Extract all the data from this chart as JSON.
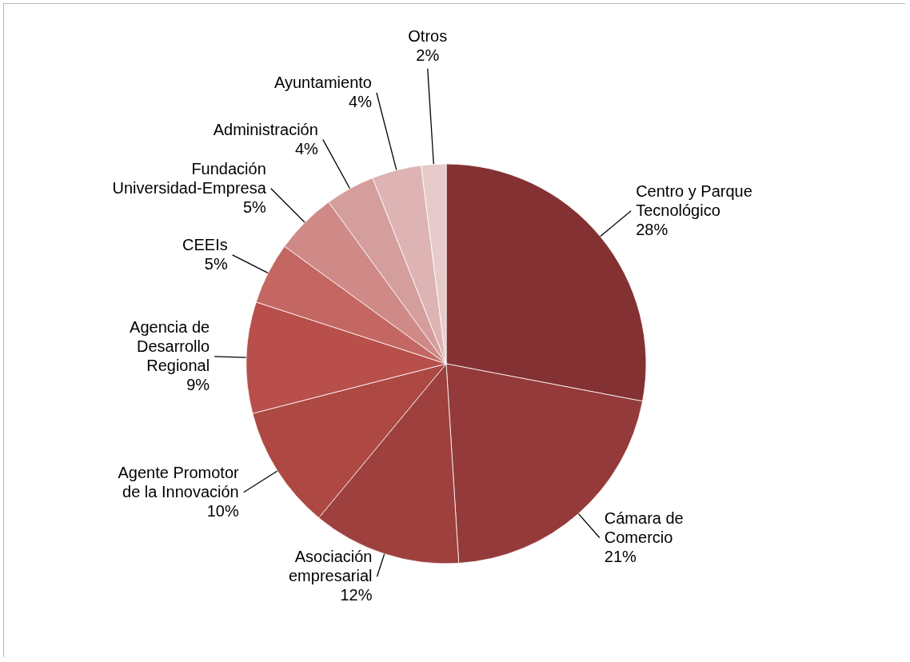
{
  "chart_data": {
    "type": "pie",
    "categories": [
      "Centro y Parque Tecnológico",
      "Cámara de Comercio",
      "Asociación empresarial",
      "Agente Promotor de la Innovación",
      "Agencia de Desarrollo Regional",
      "CEEIs",
      "Fundación Universidad-Empresa",
      "Administración",
      "Ayuntamiento",
      "Otros"
    ],
    "values": [
      28,
      21,
      12,
      10,
      9,
      5,
      5,
      4,
      4,
      2
    ],
    "colors": [
      "#843133",
      "#953a3a",
      "#9e403e",
      "#ad4843",
      "#b84f4b",
      "#c46763",
      "#cf8a88",
      "#d49e9d",
      "#ddb4b3",
      "#e7cbcb"
    ],
    "value_labels": [
      "28%",
      "21%",
      "12%",
      "10%",
      "9%",
      "5%",
      "5%",
      "4%",
      "4%",
      "2%"
    ]
  }
}
